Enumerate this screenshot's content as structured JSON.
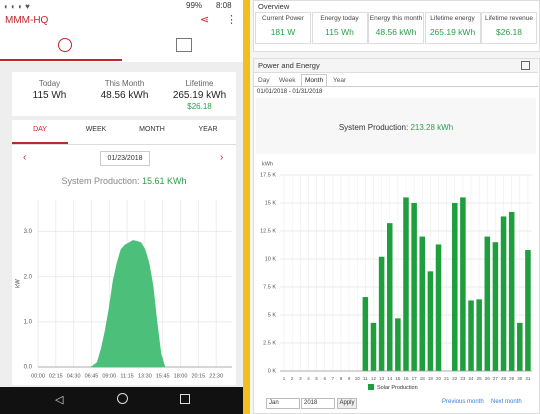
{
  "status_bar": {
    "battery": "99%",
    "time": "8:08"
  },
  "app": {
    "title": "MMM-HQ",
    "summary": [
      {
        "label": "Today",
        "value": "115  Wh"
      },
      {
        "label": "This Month",
        "value": "48.56 kWh"
      },
      {
        "label": "Lifetime",
        "value": "265.19 kWh",
        "revenue": "$26.18"
      }
    ],
    "tabs": [
      "DAY",
      "WEEK",
      "MONTH",
      "YEAR"
    ],
    "date": "01/23/2018",
    "production_label": "System Production:",
    "production_value": "15.61 KWh",
    "chart": {
      "type": "area",
      "y_label": "kW",
      "color": "#4cc07a",
      "x": [
        6.75,
        7.5,
        8,
        8.5,
        9,
        9.5,
        10,
        10.5,
        11,
        11.5,
        12,
        12.5,
        13,
        13.5,
        14,
        14.5,
        15,
        15.5,
        16
      ],
      "values": [
        0,
        0.1,
        0.4,
        0.8,
        1.3,
        1.9,
        2.3,
        2.6,
        2.7,
        2.75,
        2.8,
        2.78,
        2.75,
        2.6,
        2.3,
        1.8,
        1.0,
        0.3,
        0
      ],
      "xlim": [
        0,
        24.5
      ],
      "ylim": [
        0,
        3.7
      ],
      "xticks": [
        {
          "value": 0,
          "label": "00:00"
        },
        {
          "value": 2.25,
          "label": "02:15"
        },
        {
          "value": 4.5,
          "label": "04:30"
        },
        {
          "value": 6.75,
          "label": "06:45"
        },
        {
          "value": 9,
          "label": "09:00"
        },
        {
          "value": 11.25,
          "label": "11:15"
        },
        {
          "value": 13.5,
          "label": "13:30"
        },
        {
          "value": 15.75,
          "label": "15:45"
        },
        {
          "value": 18,
          "label": "18:00"
        },
        {
          "value": 20.25,
          "label": "20:15"
        },
        {
          "value": 22.5,
          "label": "22:30"
        }
      ],
      "yticks": [
        {
          "value": 0,
          "label": "0.0"
        },
        {
          "value": 1,
          "label": "1.0"
        },
        {
          "value": 2,
          "label": "2.0"
        },
        {
          "value": 3,
          "label": "3.0"
        }
      ],
      "grid": true
    }
  },
  "dashboard": {
    "overview_title": "Overview",
    "cards": [
      {
        "label": "Current Power",
        "value": "181 W"
      },
      {
        "label": "Energy today",
        "value": "115 Wh"
      },
      {
        "label": "Energy this month",
        "value": "48.56 kWh"
      },
      {
        "label": "Lifetime energy",
        "value": "265.19 kWh"
      },
      {
        "label": "Lifetime revenue",
        "value": "$26.18"
      }
    ],
    "panel_title": "Power and Energy",
    "tabs": [
      "Day",
      "Week",
      "Month",
      "Year"
    ],
    "date_range": "01/01/2018 - 01/31/2018",
    "production_label": "System Production:",
    "production_value": "213.28 kWh",
    "chart": {
      "type": "bar",
      "y_label": "kWh",
      "categories": [
        "1",
        "2",
        "3",
        "4",
        "5",
        "6",
        "7",
        "8",
        "9",
        "10",
        "11",
        "12",
        "13",
        "14",
        "15",
        "16",
        "17",
        "18",
        "19",
        "20",
        "21",
        "22",
        "23",
        "24",
        "25",
        "26",
        "27",
        "28",
        "29",
        "30",
        "31"
      ],
      "series": [
        {
          "name": "Solar Production",
          "color": "#1f9e3e",
          "values": [
            0,
            0,
            0,
            0,
            0,
            0,
            0,
            0,
            0,
            0,
            6600,
            4300,
            10200,
            13200,
            4700,
            15500,
            15000,
            12000,
            8900,
            11300,
            0,
            15000,
            15500,
            6300,
            6400,
            12000,
            11500,
            13800,
            14200,
            4300,
            10800
          ]
        }
      ],
      "ylim": [
        0,
        17500
      ],
      "yticks": [
        {
          "value": 0,
          "label": "0 K"
        },
        {
          "value": 2500,
          "label": "2.5 K"
        },
        {
          "value": 5000,
          "label": "5 K"
        },
        {
          "value": 7500,
          "label": "7.5 K"
        },
        {
          "value": 10000,
          "label": "10 K"
        },
        {
          "value": 12500,
          "label": "12.5 K"
        },
        {
          "value": 15000,
          "label": "15 K"
        },
        {
          "value": 17500,
          "label": "17.5 K"
        }
      ],
      "grid": true
    },
    "month_select": "Jan",
    "year_select": "2018",
    "apply": "Apply",
    "previous": "Previous month",
    "next": "Next month"
  }
}
